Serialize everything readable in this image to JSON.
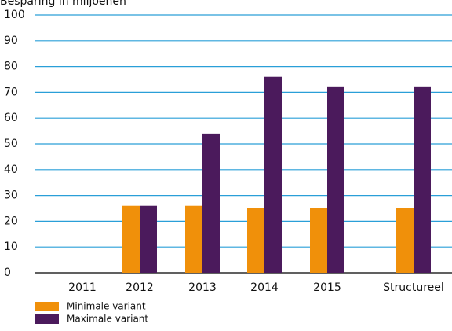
{
  "chart_data": {
    "type": "bar",
    "title": "Besparing in miljoenen",
    "categories": [
      "2011",
      "2012",
      "2013",
      "2014",
      "2015",
      "Structureel"
    ],
    "series": [
      {
        "name": "Minimale variant",
        "color": "#f0900a",
        "values": [
          null,
          26,
          26,
          25,
          25,
          25
        ]
      },
      {
        "name": "Maximale variant",
        "color": "#4b1a5c",
        "values": [
          null,
          26,
          54,
          76,
          72,
          72
        ]
      }
    ],
    "ylim": [
      0,
      100
    ],
    "yticks": [
      0,
      10,
      20,
      30,
      40,
      50,
      60,
      70,
      80,
      90,
      100
    ],
    "grid": true
  }
}
